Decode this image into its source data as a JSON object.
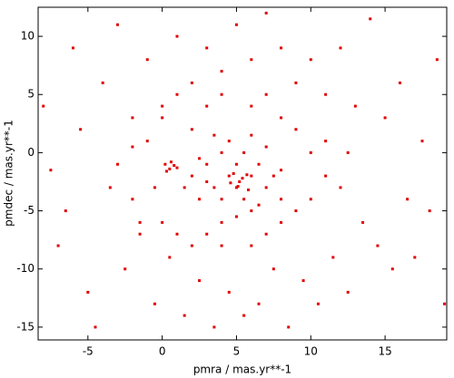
{
  "chart_data": {
    "type": "scatter",
    "x_label": "pmra / mas.yr**-1",
    "y_label": "pmdec / mas.yr**-1",
    "color": "#e00000",
    "xlim": [
      -8.35,
      19.15
    ],
    "ylim": [
      -16.1,
      12.5
    ],
    "xticks": [
      -5,
      0,
      5,
      10,
      15
    ],
    "yticks": [
      -15,
      -10,
      -5,
      0,
      5,
      10
    ],
    "x": [
      -8,
      -7.5,
      -7,
      -6.5,
      -6,
      -5.5,
      -5,
      -4.5,
      -4,
      -3.5,
      -3,
      -2.5,
      -2,
      -1.5,
      -1,
      -0.5,
      0,
      0.5,
      1,
      1.5,
      2,
      2.5,
      3,
      3.5,
      4,
      4.5,
      5,
      5.5,
      6,
      6.5,
      7,
      7.5,
      8,
      8.5,
      9,
      9.5,
      10,
      10.5,
      11,
      11.5,
      12,
      12.5,
      13,
      13.5,
      14,
      14.5,
      15,
      15.5,
      16,
      16.5,
      17,
      17.5,
      18,
      18.5,
      19,
      -3,
      -2,
      -1,
      -1.5,
      0,
      0,
      1,
      1,
      2,
      2,
      3,
      3,
      4,
      4,
      6,
      6,
      7,
      7,
      8,
      8,
      9,
      9,
      10,
      10,
      11,
      11,
      12,
      -2,
      -0.5,
      12.5,
      3,
      3.5,
      4,
      4,
      4.5,
      5,
      5,
      5.2,
      5.5,
      5.5,
      6,
      6,
      6.5,
      7,
      7,
      7.5,
      3,
      2.5,
      2.5,
      4.5,
      6,
      8,
      8,
      5,
      4,
      3.5,
      2,
      1.5,
      6.5,
      5.8,
      4.8,
      5.4,
      5.1,
      4.6,
      5.7,
      0.2,
      0.5,
      0.8,
      0.3,
      0.6,
      1
    ],
    "values": [
      4,
      -1.5,
      -8,
      -5,
      9,
      2,
      -12,
      -15,
      6,
      -3,
      11,
      -10,
      3,
      -7,
      8,
      -13,
      4,
      -9,
      10,
      -14,
      6,
      -11,
      9,
      -15,
      7,
      -12,
      11,
      -14,
      8,
      -13,
      12,
      -10,
      9,
      -15,
      6,
      -11,
      8,
      -13,
      5,
      -9,
      9,
      -12,
      4,
      -6,
      11.5,
      -8,
      3,
      -10,
      6,
      -4,
      -9,
      1,
      -5,
      8,
      -13,
      -1,
      -4,
      1,
      -6,
      3,
      -6,
      5,
      -7,
      2,
      -8,
      4,
      -7,
      5,
      -8,
      4,
      -8,
      5,
      -7,
      3,
      -6,
      2,
      -5,
      0,
      -4,
      -2,
      1,
      -3,
      0.5,
      -3,
      0,
      -1,
      -3,
      0,
      -4,
      -2,
      -1,
      -3,
      -2.5,
      0,
      -4,
      -2,
      -5,
      -1,
      -3,
      0.5,
      -2,
      -2.5,
      -0.5,
      -4,
      1,
      1.5,
      -1.5,
      -4,
      -5.5,
      -6,
      1.5,
      -2,
      -3,
      -4.5,
      -3.2,
      -1.8,
      -2.2,
      -2.9,
      -2.6,
      -1.9,
      -1,
      -1.4,
      -1.1,
      -1.6,
      -0.8,
      -1.3
    ]
  }
}
